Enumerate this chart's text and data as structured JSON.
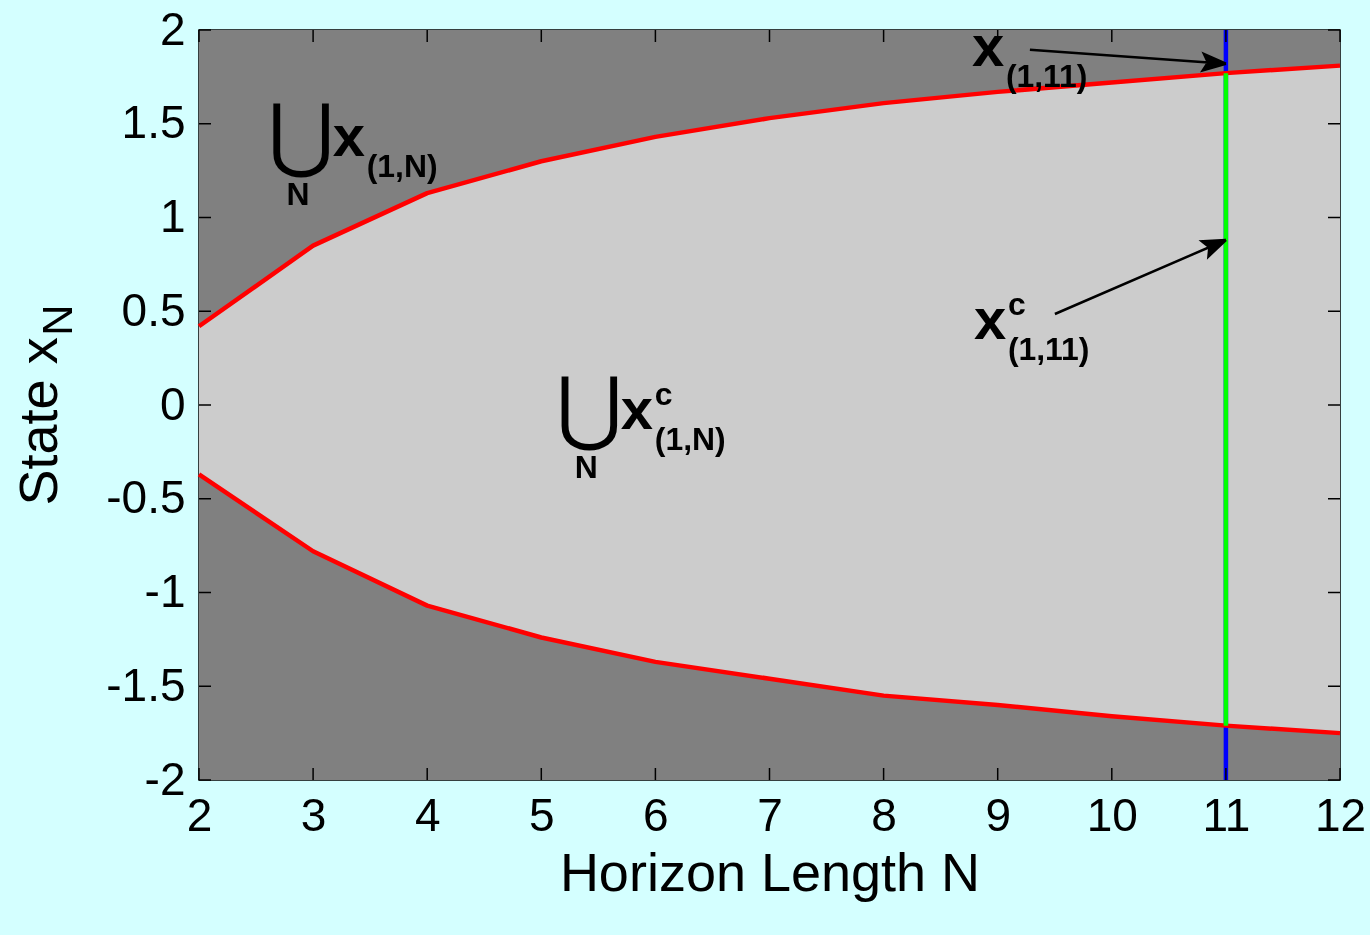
{
  "chart_data": {
    "type": "line",
    "xlabel": "Horizon Length N",
    "ylabel": "State x$_{N}$",
    "x": [
      2,
      3,
      4,
      5,
      6,
      7,
      8,
      9,
      10,
      11,
      12
    ],
    "series": [
      {
        "color": "#ff0000",
        "values": [
          0.42,
          0.85,
          1.13,
          1.3,
          1.43,
          1.53,
          1.61,
          1.67,
          1.72,
          1.77,
          1.81
        ],
        "lower": [
          -0.37,
          -0.78,
          -1.07,
          -1.24,
          -1.37,
          -1.46,
          -1.55,
          -1.6,
          -1.66,
          -1.71,
          -1.75
        ],
        "upper": [
          0.42,
          0.85,
          1.13,
          1.3,
          1.43,
          1.53,
          1.61,
          1.67,
          1.72,
          1.77,
          1.81
        ]
      },
      {
        "color": "#ff0000",
        "values": [
          -0.37,
          -0.78,
          -1.07,
          -1.24,
          -1.37,
          -1.46,
          -1.55,
          -1.6,
          -1.66,
          -1.71,
          -1.75
        ]
      },
      {
        "type": "bar",
        "color": "#00ff00",
        "x": [
          11
        ],
        "values": [
          3.48
        ],
        "base": [
          -1.71
        ]
      }
    ],
    "ref_lines": [
      {
        "axis": "x",
        "value": 11,
        "color": "#0000ff"
      }
    ],
    "bands": [
      {
        "axis": "y",
        "from": -2,
        "to": 2,
        "color": "#808080"
      }
    ],
    "annotations": [
      "⋃$_{N}$x$_{(1,N)}$",
      "⋃$_{N}$x$^{c}$$_{(1,N)}$",
      {
        "text": "x$_{(1,11)}$",
        "x": 11,
        "y": 1.82
      },
      {
        "text": "x$^{c}$$_{(1,11)}$",
        "x": 11,
        "y": 0.88
      }
    ],
    "xlim": [
      2,
      12
    ],
    "ylim": [
      -2,
      2
    ],
    "xticks": [
      2,
      3,
      4,
      5,
      6,
      7,
      8,
      9,
      10,
      11,
      12
    ],
    "yticks": [
      -2,
      -1.5,
      -1,
      -0.5,
      0,
      0.5,
      1,
      1.5,
      2
    ]
  }
}
